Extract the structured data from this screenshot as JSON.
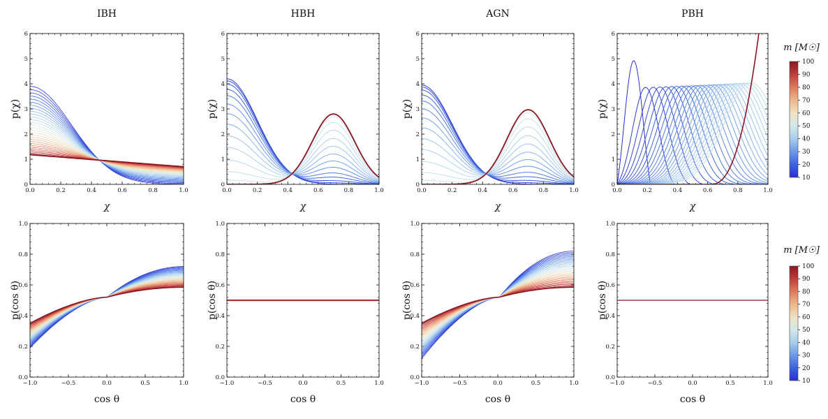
{
  "colorbar": {
    "label": "m [M☉]",
    "ticks": [
      10,
      20,
      30,
      40,
      50,
      60,
      70,
      80,
      90,
      100
    ],
    "range": [
      10,
      100
    ],
    "colors": [
      "#2a2fd0",
      "#3c63e0",
      "#6b99ea",
      "#a8cdec",
      "#d3e8ea",
      "#f0e2c4",
      "#f0b68a",
      "#de7a5c",
      "#c03e3c",
      "#8c1622"
    ]
  },
  "chart_data": [
    {
      "type": "line",
      "panel": "IBH-spin",
      "title": "IBH",
      "xlabel": "χ",
      "ylabel": "p(χ)",
      "xlim": [
        0,
        1
      ],
      "ylim": [
        0,
        6
      ],
      "xticks": [
        "0.0",
        "0.2",
        "0.4",
        "0.6",
        "0.8",
        "1.0"
      ],
      "yticks": [
        "0",
        "1",
        "2",
        "3",
        "4",
        "5",
        "6"
      ],
      "family": {
        "kind": "ibh",
        "series_count": 30,
        "mass_range": [
          10,
          100
        ],
        "low_mass_curve": {
          "peak_at_0": 3.9,
          "near_zero_from": 0.6
        },
        "high_mass_curve": {
          "at_0": 1.18,
          "at_1": 0.7
        },
        "crossing": [
          0.48,
          1.05
        ]
      }
    },
    {
      "type": "line",
      "panel": "HBH-spin",
      "title": "HBH",
      "xlabel": "χ",
      "ylabel": "p(χ)",
      "xlim": [
        0,
        1
      ],
      "ylim": [
        0,
        6
      ],
      "xticks": [
        "0.0",
        "0.2",
        "0.4",
        "0.6",
        "0.8",
        "1.0"
      ],
      "yticks": [
        "0",
        "1",
        "2",
        "3",
        "4",
        "5",
        "6"
      ],
      "family": {
        "kind": "mix",
        "series_count": 14,
        "mass_range": [
          10,
          100
        ],
        "low_mass_peak": [
          0,
          4.2
        ],
        "high_mass_peak": [
          0.7,
          2.8
        ]
      }
    },
    {
      "type": "line",
      "panel": "AGN-spin",
      "title": "AGN",
      "xlabel": "χ",
      "ylabel": "p(χ)",
      "xlim": [
        0,
        1
      ],
      "ylim": [
        0,
        6
      ],
      "xticks": [
        "0.0",
        "0.2",
        "0.4",
        "0.6",
        "0.8",
        "1.0"
      ],
      "yticks": [
        "0",
        "1",
        "2",
        "3",
        "4",
        "5",
        "6"
      ],
      "family": {
        "kind": "mix",
        "series_count": 14,
        "mass_range": [
          10,
          100
        ],
        "low_mass_peak": [
          0,
          3.95
        ],
        "high_mass_peak": [
          0.7,
          2.97
        ]
      }
    },
    {
      "type": "line",
      "panel": "PBH-spin",
      "title": "PBH",
      "xlabel": "χ",
      "ylabel": "p(χ)",
      "xlim": [
        0,
        1
      ],
      "ylim": [
        0,
        6
      ],
      "xticks": [
        "0.0",
        "0.2",
        "0.4",
        "0.6",
        "0.8",
        "1.0"
      ],
      "yticks": [
        "0",
        "1",
        "2",
        "3",
        "4",
        "5",
        "6"
      ],
      "family": {
        "kind": "pbh",
        "series_count": 26,
        "mass_range": [
          10,
          100
        ],
        "first_peak": [
          0.11,
          4.92
        ],
        "peak_height_range": [
          3.8,
          4.05
        ],
        "last_curve_reaches_6_at": 0.93
      }
    },
    {
      "type": "line",
      "panel": "IBH-tilt",
      "xlabel": "cos θ",
      "ylabel": "p(cos θ)",
      "xlim": [
        -1,
        1
      ],
      "ylim": [
        0,
        1
      ],
      "xticks": [
        "−1.0",
        "−0.5",
        "0.0",
        "0.5",
        "1.0"
      ],
      "yticks": [
        "0.0",
        "0.2",
        "0.4",
        "0.6",
        "0.8",
        "1.0"
      ],
      "family": {
        "kind": "tilt",
        "series_count": 30,
        "mass_range": [
          10,
          100
        ],
        "pivot": [
          0,
          0.52
        ],
        "low_mass_ends": [
          0.19,
          0.72
        ],
        "high_mass_ends": [
          0.35,
          0.585
        ]
      }
    },
    {
      "type": "line",
      "panel": "HBH-tilt",
      "xlabel": "cos θ",
      "ylabel": "p(cos θ)",
      "xlim": [
        -1,
        1
      ],
      "ylim": [
        0,
        1
      ],
      "xticks": [
        "−1.0",
        "−0.5",
        "0.0",
        "0.5",
        "1.0"
      ],
      "yticks": [
        "0.0",
        "0.2",
        "0.4",
        "0.6",
        "0.8",
        "1.0"
      ],
      "family": {
        "kind": "flat",
        "value": 0.5,
        "thick": true
      }
    },
    {
      "type": "line",
      "panel": "AGN-tilt",
      "xlabel": "cos θ",
      "ylabel": "p(cos θ)",
      "xlim": [
        -1,
        1
      ],
      "ylim": [
        0,
        1
      ],
      "xticks": [
        "−1.0",
        "−0.5",
        "0.0",
        "0.5",
        "1.0"
      ],
      "yticks": [
        "0.0",
        "0.2",
        "0.4",
        "0.6",
        "0.8",
        "1.0"
      ],
      "family": {
        "kind": "tilt",
        "series_count": 30,
        "mass_range": [
          10,
          100
        ],
        "pivot": [
          0.02,
          0.52
        ],
        "low_mass_ends": [
          0.12,
          0.82
        ],
        "high_mass_ends": [
          0.35,
          0.585
        ]
      }
    },
    {
      "type": "line",
      "panel": "PBH-tilt",
      "xlabel": "cos θ",
      "ylabel": "p(cos θ)",
      "xlim": [
        -1,
        1
      ],
      "ylim": [
        0,
        1
      ],
      "xticks": [
        "−1.0",
        "−0.5",
        "0.0",
        "0.5",
        "1.0"
      ],
      "yticks": [
        "0.0",
        "0.2",
        "0.4",
        "0.6",
        "0.8",
        "1.0"
      ],
      "family": {
        "kind": "flat",
        "value": 0.5,
        "thick": false
      }
    }
  ]
}
